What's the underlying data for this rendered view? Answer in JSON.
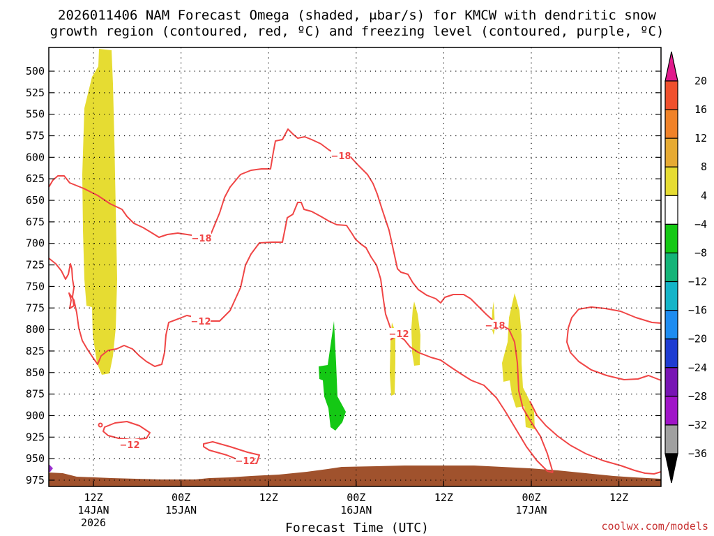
{
  "title": {
    "line1": "2026011406 NAM Forecast Omega (shaded, μbar/s) for KMCW with dendritic snow",
    "line2": "growth region (contoured, red, ºC) and freezing level (contoured, purple, ºC)"
  },
  "credit": "coolwx.com/models",
  "chart_data": {
    "type": "time-height",
    "xlabel": "Forecast Time (UTC)",
    "ylabel": "",
    "y_ticks": [
      "500",
      "525",
      "550",
      "575",
      "600",
      "625",
      "650",
      "675",
      "700",
      "725",
      "750",
      "775",
      "800",
      "825",
      "850",
      "875",
      "900",
      "925",
      "950",
      "975"
    ],
    "y_axis": {
      "values": [
        500,
        525,
        550,
        575,
        600,
        625,
        650,
        675,
        700,
        725,
        750,
        775,
        800,
        825,
        850,
        875,
        900,
        925,
        950,
        975
      ],
      "inverted": true
    },
    "x_ticks": [
      {
        "t": 6,
        "line1": "12Z",
        "line2": "14JAN",
        "line3": "2026"
      },
      {
        "t": 18,
        "line1": "00Z",
        "line2": "15JAN",
        "line3": ""
      },
      {
        "t": 30,
        "line1": "12Z",
        "line2": "",
        "line3": ""
      },
      {
        "t": 42,
        "line1": "00Z",
        "line2": "16JAN",
        "line3": ""
      },
      {
        "t": 54,
        "line1": "12Z",
        "line2": "",
        "line3": ""
      },
      {
        "t": 66,
        "line1": "00Z",
        "line2": "17JAN",
        "line3": ""
      },
      {
        "t": 78,
        "line1": "12Z",
        "line2": "",
        "line3": ""
      }
    ],
    "x_range_hours": [
      0,
      84
    ],
    "grid": true,
    "colorbar": {
      "labels": [
        "20",
        "16",
        "12",
        "8",
        "4",
        "−4",
        "−8",
        "−12",
        "−16",
        "−20",
        "−24",
        "−28",
        "−32",
        "−36"
      ],
      "colors": [
        "#e11a8c",
        "#f0502d",
        "#f08228",
        "#e6aa32",
        "#e6dc32",
        "#ffffff",
        "#14c814",
        "#14b478",
        "#14b4c8",
        "#1e8cf0",
        "#1e3cd2",
        "#7814b4",
        "#a014c8",
        "#a0a0a0"
      ]
    },
    "contour_labels": [
      {
        "text": "−18",
        "series": "upper"
      },
      {
        "text": "−18",
        "series": "upper"
      },
      {
        "text": "−18",
        "series": "upper"
      },
      {
        "text": "−12",
        "series": "lower"
      },
      {
        "text": "−12",
        "series": "lower"
      },
      {
        "text": "−12",
        "series": "lower"
      },
      {
        "text": "−12",
        "series": "lower"
      }
    ],
    "colors": {
      "contour": "#f04646",
      "omega_positive": "#e6dc32",
      "omega_negative": "#14c814",
      "terrain": "#a0522d",
      "freezing": "#9b30d0"
    }
  }
}
